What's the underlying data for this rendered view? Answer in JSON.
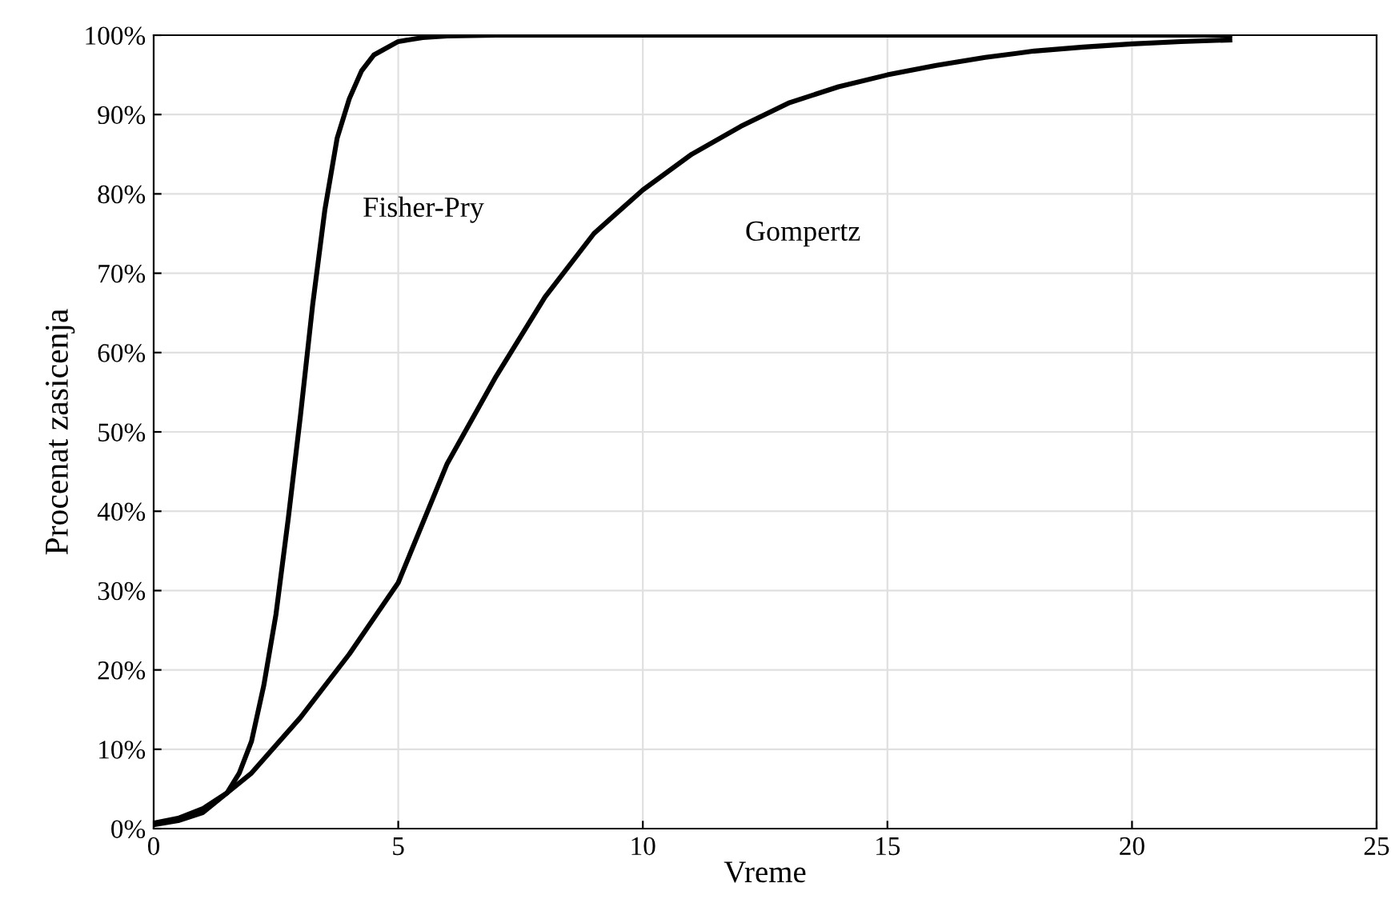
{
  "chart_data": {
    "type": "line",
    "xlabel": "Vreme",
    "ylabel": "Procenat zasicenja",
    "xlim": [
      0,
      25
    ],
    "xticks": [
      0,
      5,
      10,
      15,
      20,
      25
    ],
    "ylim": [
      0,
      100
    ],
    "yticks": [
      {
        "value": 0,
        "label": "0%"
      },
      {
        "value": 10,
        "label": "10%"
      },
      {
        "value": 20,
        "label": "20%"
      },
      {
        "value": 30,
        "label": "30%"
      },
      {
        "value": 40,
        "label": "40%"
      },
      {
        "value": 50,
        "label": "50%"
      },
      {
        "value": 60,
        "label": "60%"
      },
      {
        "value": 70,
        "label": "70%"
      },
      {
        "value": 80,
        "label": "80%"
      },
      {
        "value": 90,
        "label": "90%"
      },
      {
        "value": 100,
        "label": "100%"
      }
    ],
    "grid": true,
    "legend": false,
    "marker": "none",
    "line_style": "solid",
    "series": [
      {
        "name": "Fisher-Pry",
        "color": "#000000",
        "x": [
          0,
          0.5,
          1,
          1.5,
          1.75,
          2,
          2.25,
          2.5,
          2.75,
          3,
          3.25,
          3.5,
          3.75,
          4,
          4.25,
          4.5,
          5,
          5.5,
          6,
          7,
          10,
          22
        ],
        "values": [
          0.5,
          1.0,
          2.0,
          4.5,
          7,
          11,
          18,
          27,
          39,
          52,
          66,
          78,
          87,
          92,
          95.5,
          97.5,
          99.2,
          99.7,
          99.9,
          100,
          100,
          100
        ]
      },
      {
        "name": "Gompertz",
        "color": "#000000",
        "x": [
          0,
          0.5,
          1,
          1.5,
          2,
          3,
          4,
          5,
          6,
          7,
          8,
          9,
          10,
          11,
          12,
          13,
          14,
          15,
          16,
          17,
          18,
          19,
          20,
          21,
          22
        ],
        "values": [
          0.7,
          1.3,
          2.5,
          4.5,
          7,
          14,
          22,
          31,
          46,
          57,
          67,
          75,
          80.5,
          85,
          88.5,
          91.5,
          93.5,
          95,
          96.2,
          97.2,
          98,
          98.5,
          98.9,
          99.2,
          99.4
        ]
      }
    ]
  }
}
